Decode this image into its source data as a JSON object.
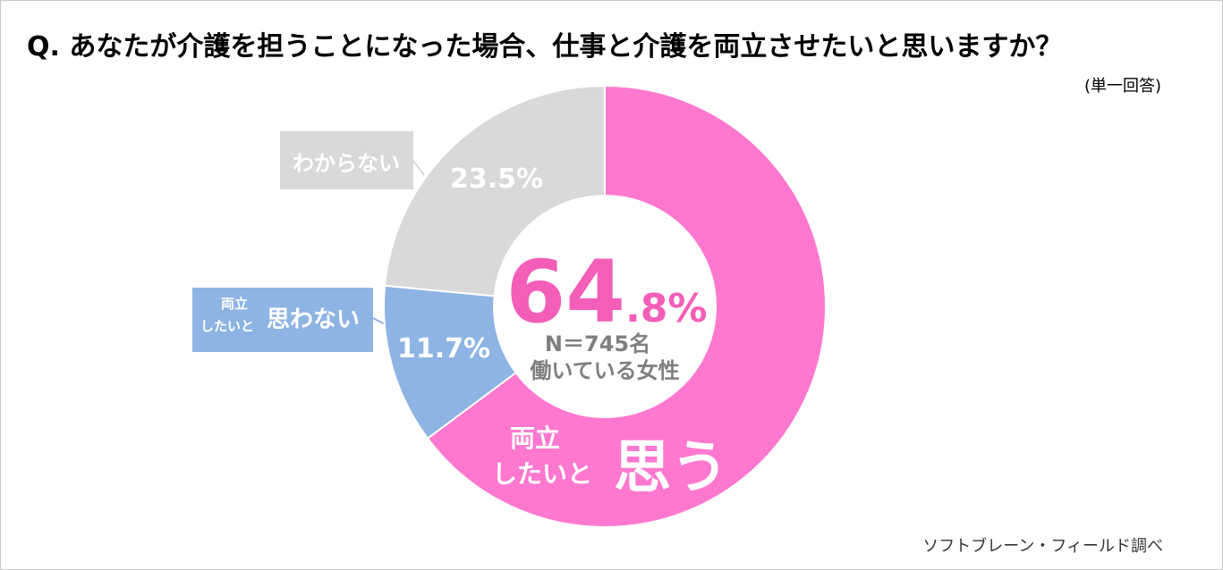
{
  "chart_data": {
    "type": "donut",
    "title": "Q.  あなたが介護を担うことになった場合、仕事と介護を両立させたいと思いますか？",
    "subtitle": "(単一回答)",
    "center_lines": [
      "N＝745名",
      "働いている女性"
    ],
    "source": "ソフトブレーン・フィールド調べ",
    "labels": [
      {
        "lines": [
          "両立",
          "したいと"
        ],
        "emphasis": "思う"
      },
      {
        "lines": [
          "両立",
          "したいと"
        ],
        "emphasis": "思わない"
      },
      {
        "lines": [],
        "emphasis": "わからない"
      }
    ],
    "values": [
      64.8,
      11.7,
      23.5
    ],
    "value_labels": [
      "64.8%",
      "11.7%",
      "23.5%"
    ],
    "colors": [
      "#ff78d0",
      "#8eb4e3",
      "#d9d9d9"
    ]
  }
}
